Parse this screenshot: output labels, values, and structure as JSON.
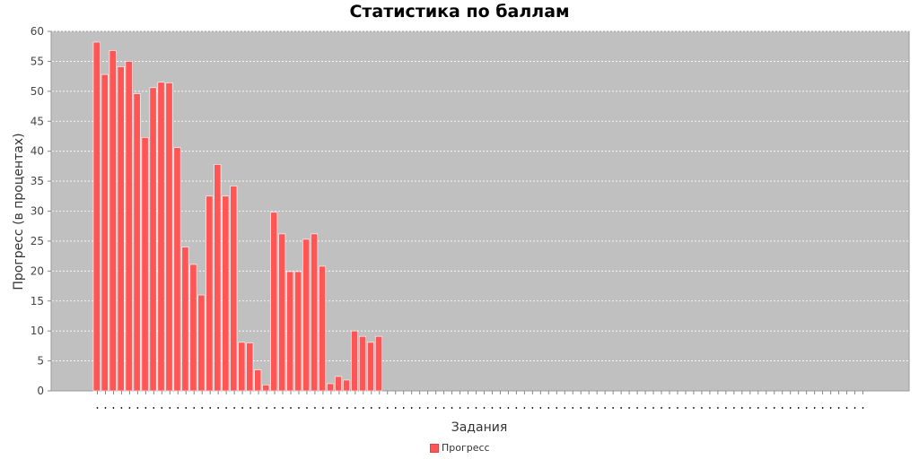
{
  "chart_data": {
    "type": "bar",
    "title": "Статистика по баллам",
    "xlabel": "Задания",
    "ylabel": "Прогресс (в процентах)",
    "ylim": [
      0,
      60
    ],
    "yticks": [
      0,
      5,
      10,
      15,
      20,
      25,
      30,
      35,
      40,
      45,
      50,
      55,
      60
    ],
    "grid": true,
    "legend_position": "bottom-center",
    "series": [
      {
        "name": "Прогресс",
        "color": "#ff5555",
        "values": [
          58.2,
          52.8,
          56.8,
          54.1,
          55.0,
          49.6,
          42.3,
          50.6,
          51.5,
          51.4,
          40.6,
          24.0,
          21.1,
          16.0,
          32.5,
          37.8,
          32.5,
          34.2,
          8.1,
          8.0,
          3.5,
          1.0,
          29.8,
          26.2,
          19.9,
          19.9,
          25.3,
          26.2,
          20.8,
          1.2,
          2.4,
          1.8,
          10.0,
          9.1,
          8.1,
          9.1,
          0,
          0,
          0,
          0,
          0,
          0,
          0,
          0,
          0,
          0,
          0,
          0,
          0,
          0,
          0,
          0,
          0,
          0,
          0,
          0,
          0,
          0,
          0,
          0,
          0,
          0,
          0,
          0,
          0,
          0,
          0,
          0,
          0,
          0,
          0,
          0,
          0,
          0,
          0,
          0,
          0,
          0,
          0,
          0,
          0,
          0,
          0,
          0,
          0,
          0,
          0,
          0,
          0,
          0,
          0,
          0,
          0,
          0,
          0,
          0
        ]
      }
    ]
  }
}
